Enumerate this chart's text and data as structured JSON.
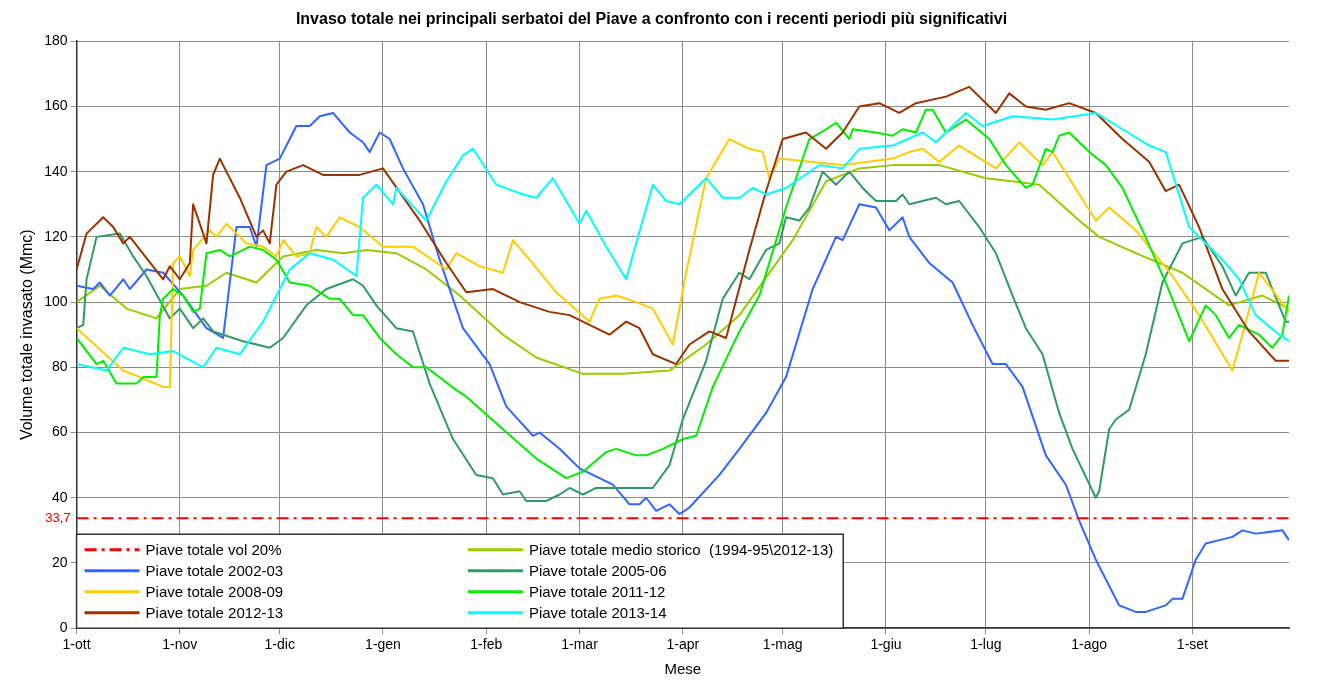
{
  "chart_data": {
    "type": "line",
    "title": "Invaso totale nei principali serbatoi del Piave a confronto con i recenti periodi più significativi",
    "xlabel": "Mese",
    "ylabel": "Volume totale invasato (Mmc)",
    "xlim": [
      "2001-10-01",
      "2002-09-30"
    ],
    "xticks": [
      {
        "value": "2001-10-01",
        "label": "1-ott"
      },
      {
        "value": "2001-11-01",
        "label": "1-nov"
      },
      {
        "value": "2001-12-01",
        "label": "1-dic"
      },
      {
        "value": "2002-01-01",
        "label": "1-gen"
      },
      {
        "value": "2002-02-01",
        "label": "1-feb"
      },
      {
        "value": "2002-03-01",
        "label": "1-mar"
      },
      {
        "value": "2002-04-01",
        "label": "1-apr"
      },
      {
        "value": "2002-05-01",
        "label": "1-mag"
      },
      {
        "value": "2002-06-01",
        "label": "1-giu"
      },
      {
        "value": "2002-07-01",
        "label": "1-lug"
      },
      {
        "value": "2002-08-01",
        "label": "1-ago"
      },
      {
        "value": "2002-09-01",
        "label": "1-set"
      }
    ],
    "ylim": [
      0,
      180
    ],
    "yticks": [
      0,
      20,
      40,
      60,
      80,
      100,
      120,
      140,
      160,
      180
    ],
    "grid": true,
    "legend": "bottom left",
    "annotations": [
      "33,7"
    ],
    "ref_lines": [
      {
        "axis": "y",
        "value": 33.7,
        "label": "Piave totale vol 20%",
        "color": "#ff0000",
        "line_style": "dashed"
      }
    ],
    "series": [
      {
        "name": "Piave totale medio storico  (1994-95\\2012-13)",
        "color": "#99cc00",
        "x": [
          "2001-10-01",
          "2001-10-08",
          "2001-10-16",
          "2001-10-25",
          "2001-11-01",
          "2001-11-09",
          "2001-11-15",
          "2001-11-24",
          "2001-12-02",
          "2001-12-12",
          "2001-12-20",
          "2001-12-27",
          "2002-01-05",
          "2002-01-14",
          "2002-01-24",
          "2002-02-06",
          "2002-02-16",
          "2002-03-02",
          "2002-03-14",
          "2002-03-28",
          "2002-04-08",
          "2002-04-18",
          "2002-05-04",
          "2002-05-14",
          "2002-05-24",
          "2002-06-03",
          "2002-06-08",
          "2002-06-17",
          "2002-07-01",
          "2002-07-17",
          "2002-07-29",
          "2002-08-04",
          "2002-08-15",
          "2002-08-29",
          "2002-09-12",
          "2002-09-22",
          "2002-09-30"
        ],
        "values": [
          100,
          105,
          98,
          95,
          104,
          105,
          109,
          106,
          114,
          116,
          115,
          116,
          115,
          110,
          102,
          90,
          83,
          78,
          78,
          79,
          87,
          96,
          119,
          137,
          141,
          142,
          142,
          142,
          138,
          136,
          125,
          120,
          115,
          109,
          99,
          102,
          98
        ]
      },
      {
        "name": "Piave totale 2002-03",
        "color": "#3366ff",
        "x": [
          "2001-10-01",
          "2001-10-06",
          "2001-10-08",
          "2001-10-11",
          "2001-10-15",
          "2001-10-17",
          "2001-10-22",
          "2001-10-27",
          "2001-11-02",
          "2001-11-09",
          "2001-11-14",
          "2001-11-18",
          "2001-11-22",
          "2001-11-24",
          "2001-11-27",
          "2001-12-01",
          "2001-12-06",
          "2001-12-10",
          "2001-12-13",
          "2001-12-17",
          "2001-12-22",
          "2001-12-26",
          "2001-12-28",
          "2001-12-31",
          "2002-01-03",
          "2002-01-07",
          "2002-01-13",
          "2002-01-18",
          "2002-01-25",
          "2002-02-02",
          "2002-02-07",
          "2002-02-15",
          "2002-02-17",
          "2002-02-23",
          "2002-03-01",
          "2002-03-11",
          "2002-03-16",
          "2002-03-19",
          "2002-03-21",
          "2002-03-24",
          "2002-03-28",
          "2002-03-31",
          "2002-04-03",
          "2002-04-12",
          "2002-04-18",
          "2002-04-26",
          "2002-05-02",
          "2002-05-10",
          "2002-05-17",
          "2002-05-19",
          "2002-05-24",
          "2002-05-29",
          "2002-06-02",
          "2002-06-06",
          "2002-06-08",
          "2002-06-14",
          "2002-06-21",
          "2002-06-27",
          "2002-07-03",
          "2002-07-07",
          "2002-07-12",
          "2002-07-19",
          "2002-07-25",
          "2002-07-29",
          "2002-08-03",
          "2002-08-10",
          "2002-08-15",
          "2002-08-18",
          "2002-08-24",
          "2002-08-26",
          "2002-08-29",
          "2002-09-02",
          "2002-09-05",
          "2002-09-13",
          "2002-09-16",
          "2002-09-20",
          "2002-09-28",
          "2002-09-30"
        ],
        "values": [
          105,
          104,
          106,
          102,
          107,
          104,
          110,
          109,
          102,
          92,
          89,
          123,
          123,
          117,
          142,
          144,
          154,
          154,
          157,
          158,
          152,
          149,
          146,
          152,
          150,
          141,
          130,
          113,
          92,
          81,
          68,
          59,
          60,
          55,
          49,
          44,
          38,
          38,
          40,
          36,
          38,
          35,
          37,
          47,
          55,
          66,
          77,
          104,
          120,
          119,
          130,
          129,
          122,
          126,
          120,
          112,
          106,
          93,
          81,
          81,
          74,
          53,
          44,
          33,
          21,
          7,
          5,
          5,
          7,
          9,
          9,
          21,
          26,
          28,
          30,
          29,
          30,
          27
        ]
      },
      {
        "name": "Piave totale 2005-06",
        "color": "#339966",
        "x": [
          "2001-10-01",
          "2001-10-03",
          "2001-10-04",
          "2001-10-07",
          "2001-10-14",
          "2001-10-18",
          "2001-10-22",
          "2001-10-29",
          "2001-11-01",
          "2001-11-05",
          "2001-11-08",
          "2001-11-11",
          "2001-11-20",
          "2001-11-28",
          "2001-12-02",
          "2001-12-09",
          "2001-12-15",
          "2001-12-23",
          "2001-12-26",
          "2001-12-30",
          "2002-01-05",
          "2002-01-10",
          "2002-01-15",
          "2002-01-22",
          "2002-01-29",
          "2002-02-03",
          "2002-02-06",
          "2002-02-11",
          "2002-02-13",
          "2002-02-19",
          "2002-02-23",
          "2002-02-26",
          "2002-03-02",
          "2002-03-06",
          "2002-03-14",
          "2002-03-20",
          "2002-03-23",
          "2002-03-28",
          "2002-04-01",
          "2002-04-08",
          "2002-04-13",
          "2002-04-18",
          "2002-04-21",
          "2002-04-26",
          "2002-04-30",
          "2002-05-02",
          "2002-05-06",
          "2002-05-09",
          "2002-05-13",
          "2002-05-17",
          "2002-05-21",
          "2002-05-25",
          "2002-05-29",
          "2002-06-04",
          "2002-06-06",
          "2002-06-08",
          "2002-06-16",
          "2002-06-19",
          "2002-06-23",
          "2002-06-29",
          "2002-07-04",
          "2002-07-09",
          "2002-07-13",
          "2002-07-18",
          "2002-07-23",
          "2002-07-27",
          "2002-08-03",
          "2002-08-04",
          "2002-08-07",
          "2002-08-09",
          "2002-08-13",
          "2002-08-18",
          "2002-08-23",
          "2002-08-29",
          "2002-09-04",
          "2002-09-10",
          "2002-09-14",
          "2002-09-18",
          "2002-09-23",
          "2002-09-29",
          "2002-09-30"
        ],
        "values": [
          92,
          93,
          107,
          120,
          121,
          114,
          108,
          95,
          98,
          92,
          95,
          91,
          88,
          86,
          89,
          99,
          104,
          107,
          105,
          99,
          92,
          91,
          75,
          58,
          47,
          46,
          41,
          42,
          39,
          39,
          41,
          43,
          41,
          43,
          43,
          43,
          43,
          50,
          64,
          82,
          101,
          109,
          107,
          116,
          118,
          126,
          125,
          129,
          140,
          136,
          140,
          135,
          131,
          131,
          133,
          130,
          132,
          130,
          131,
          123,
          115,
          102,
          92,
          84,
          66,
          55,
          40,
          42,
          61,
          64,
          67,
          84,
          106,
          118,
          120,
          111,
          102,
          109,
          109,
          94,
          94
        ]
      },
      {
        "name": "Piave totale 2008-09",
        "color": "#ffcc00",
        "x": [
          "2001-10-01",
          "2001-10-15",
          "2001-10-20",
          "2001-10-27",
          "2001-10-29",
          "2001-10-30",
          "2001-11-01",
          "2001-11-04",
          "2001-11-05",
          "2001-11-10",
          "2001-11-12",
          "2001-11-15",
          "2001-11-21",
          "2001-11-26",
          "2001-11-30",
          "2001-12-02",
          "2001-12-06",
          "2001-12-10",
          "2001-12-12",
          "2001-12-15",
          "2001-12-19",
          "2001-12-25",
          "2002-01-01",
          "2002-01-10",
          "2002-01-20",
          "2002-01-23",
          "2002-01-30",
          "2002-02-06",
          "2002-02-09",
          "2002-02-14",
          "2002-02-22",
          "2002-03-04",
          "2002-03-07",
          "2002-03-12",
          "2002-03-18",
          "2002-03-23",
          "2002-03-29",
          "2002-04-02",
          "2002-04-08",
          "2002-04-15",
          "2002-04-21",
          "2002-04-25",
          "2002-04-27",
          "2002-04-30",
          "2002-05-09",
          "2002-05-19",
          "2002-06-03",
          "2002-06-08",
          "2002-06-12",
          "2002-06-17",
          "2002-06-23",
          "2002-07-04",
          "2002-07-11",
          "2002-07-18",
          "2002-07-21",
          "2002-08-03",
          "2002-08-07",
          "2002-08-15",
          "2002-08-26",
          "2002-09-03",
          "2002-09-13",
          "2002-09-16",
          "2002-09-21",
          "2002-09-30"
        ],
        "values": [
          92,
          79,
          77,
          74,
          74,
          112,
          114,
          108,
          116,
          122,
          120,
          124,
          118,
          117,
          114,
          119,
          114,
          115,
          123,
          120,
          126,
          123,
          117,
          117,
          110,
          115,
          111,
          109,
          119,
          113,
          103,
          94,
          101,
          102,
          100,
          98,
          87,
          109,
          138,
          150,
          147,
          146,
          138,
          144,
          143,
          142,
          144,
          146,
          147,
          143,
          148,
          141,
          149,
          142,
          146,
          125,
          129,
          122,
          108,
          96,
          79,
          90,
          109,
          97
        ]
      },
      {
        "name": "Piave totale 2011-12",
        "color": "#00ee00",
        "x": [
          "2001-10-01",
          "2001-10-07",
          "2001-10-09",
          "2001-10-13",
          "2001-10-19",
          "2001-10-21",
          "2001-10-25",
          "2001-10-26",
          "2001-10-27",
          "2001-10-30",
          "2001-11-02",
          "2001-11-05",
          "2001-11-07",
          "2001-11-09",
          "2001-11-13",
          "2001-11-16",
          "2001-11-22",
          "2001-11-26",
          "2001-11-30",
          "2001-12-04",
          "2001-12-10",
          "2001-12-16",
          "2001-12-19",
          "2001-12-23",
          "2001-12-26",
          "2001-12-31",
          "2002-01-05",
          "2002-01-10",
          "2002-01-14",
          "2002-01-23",
          "2002-01-26",
          "2002-02-06",
          "2002-02-16",
          "2002-02-25",
          "2002-03-02",
          "2002-03-09",
          "2002-03-12",
          "2002-03-18",
          "2002-03-21",
          "2002-03-26",
          "2002-04-01",
          "2002-04-05",
          "2002-04-10",
          "2002-04-18",
          "2002-04-24",
          "2002-05-02",
          "2002-05-09",
          "2002-05-14",
          "2002-05-17",
          "2002-05-21",
          "2002-05-22",
          "2002-05-29",
          "2002-06-03",
          "2002-06-06",
          "2002-06-10",
          "2002-06-13",
          "2002-06-15",
          "2002-06-19",
          "2002-06-25",
          "2002-07-02",
          "2002-07-07",
          "2002-07-13",
          "2002-07-15",
          "2002-07-19",
          "2002-07-21",
          "2002-07-23",
          "2002-07-26",
          "2002-08-01",
          "2002-08-06",
          "2002-08-11",
          "2002-08-17",
          "2002-08-24",
          "2002-08-31",
          "2002-09-05",
          "2002-09-08",
          "2002-09-12",
          "2002-09-15",
          "2002-09-21",
          "2002-09-25",
          "2002-09-28",
          "2002-09-30"
        ],
        "values": [
          89,
          81,
          82,
          75,
          75,
          77,
          77,
          96,
          101,
          104,
          102,
          97,
          98,
          115,
          116,
          114,
          117,
          116,
          113,
          106,
          105,
          101,
          101,
          96,
          96,
          89,
          84,
          80,
          80,
          73,
          71,
          61,
          52,
          46,
          48,
          54,
          55,
          53,
          53,
          55,
          58,
          59,
          74,
          91,
          102,
          129,
          150,
          153,
          155,
          150,
          153,
          152,
          151,
          153,
          152,
          159,
          159,
          152,
          156,
          150,
          142,
          135,
          136,
          147,
          146,
          151,
          152,
          146,
          142,
          135,
          122,
          106,
          88,
          99,
          96,
          89,
          93,
          90,
          86,
          90,
          102
        ]
      },
      {
        "name": "Piave totale 2012-13",
        "color": "#993300",
        "x": [
          "2001-10-01",
          "2001-10-04",
          "2001-10-09",
          "2001-10-12",
          "2001-10-15",
          "2001-10-17",
          "2001-10-27",
          "2001-10-29",
          "2001-11-01",
          "2001-11-04",
          "2001-11-05",
          "2001-11-09",
          "2001-11-11",
          "2001-11-13",
          "2001-11-19",
          "2001-11-24",
          "2001-11-26",
          "2001-11-28",
          "2001-11-30",
          "2001-12-03",
          "2001-12-08",
          "2001-12-14",
          "2001-12-25",
          "2002-01-01",
          "2002-01-12",
          "2002-01-20",
          "2002-01-26",
          "2002-02-03",
          "2002-02-11",
          "2002-02-20",
          "2002-02-26",
          "2002-03-10",
          "2002-03-15",
          "2002-03-19",
          "2002-03-23",
          "2002-03-30",
          "2002-04-03",
          "2002-04-09",
          "2002-04-14",
          "2002-04-21",
          "2002-04-26",
          "2002-05-01",
          "2002-05-08",
          "2002-05-14",
          "2002-05-19",
          "2002-05-24",
          "2002-05-30",
          "2002-06-05",
          "2002-06-10",
          "2002-06-19",
          "2002-06-26",
          "2002-07-04",
          "2002-07-08",
          "2002-07-13",
          "2002-07-19",
          "2002-07-26",
          "2002-08-03",
          "2002-08-11",
          "2002-08-19",
          "2002-08-24",
          "2002-08-28",
          "2002-09-03",
          "2002-09-10",
          "2002-09-18",
          "2002-09-26",
          "2002-09-30"
        ],
        "values": [
          110,
          121,
          126,
          123,
          118,
          120,
          107,
          111,
          107,
          112,
          130,
          118,
          139,
          144,
          132,
          120,
          122,
          118,
          136,
          140,
          142,
          139,
          139,
          141,
          125,
          112,
          103,
          104,
          100,
          97,
          96,
          90,
          94,
          92,
          84,
          81,
          87,
          91,
          89,
          116,
          134,
          150,
          152,
          147,
          152,
          160,
          161,
          158,
          161,
          163,
          166,
          158,
          164,
          160,
          159,
          161,
          158,
          150,
          143,
          134,
          136,
          123,
          104,
          91,
          82,
          82
        ]
      },
      {
        "name": "Piave totale 2013-14",
        "color": "#00ffff",
        "x": [
          "2001-10-01",
          "2001-10-10",
          "2001-10-15",
          "2001-10-23",
          "2001-10-30",
          "2001-11-08",
          "2001-11-12",
          "2001-11-19",
          "2001-11-26",
          "2001-11-30",
          "2001-12-04",
          "2001-12-10",
          "2001-12-17",
          "2001-12-24",
          "2001-12-26",
          "2001-12-30",
          "2002-01-04",
          "2002-01-05",
          "2002-01-14",
          "2002-01-20",
          "2002-01-25",
          "2002-01-28",
          "2002-02-04",
          "2002-02-12",
          "2002-02-16",
          "2002-02-21",
          "2002-03-01",
          "2002-03-03",
          "2002-03-09",
          "2002-03-15",
          "2002-03-18",
          "2002-03-23",
          "2002-03-27",
          "2002-03-31",
          "2002-04-08",
          "2002-04-13",
          "2002-04-18",
          "2002-04-22",
          "2002-04-26",
          "2002-05-02",
          "2002-05-12",
          "2002-05-19",
          "2002-05-24",
          "2002-06-03",
          "2002-06-12",
          "2002-06-16",
          "2002-06-25",
          "2002-06-30",
          "2002-07-09",
          "2002-07-21",
          "2002-08-03",
          "2002-08-11",
          "2002-08-19",
          "2002-08-24",
          "2002-08-31",
          "2002-09-10",
          "2002-09-15",
          "2002-09-20",
          "2002-09-27",
          "2002-09-30"
        ],
        "values": [
          81,
          79,
          86,
          84,
          85,
          80,
          86,
          84,
          94,
          102,
          110,
          115,
          113,
          108,
          132,
          136,
          130,
          135,
          125,
          137,
          145,
          147,
          136,
          133,
          132,
          138,
          124,
          128,
          117,
          107,
          118,
          136,
          131,
          130,
          138,
          132,
          132,
          135,
          133,
          135,
          142,
          141,
          147,
          148,
          152,
          149,
          158,
          154,
          157,
          156,
          158,
          153,
          148,
          146,
          123,
          113,
          107,
          96,
          90,
          88
        ]
      }
    ]
  }
}
